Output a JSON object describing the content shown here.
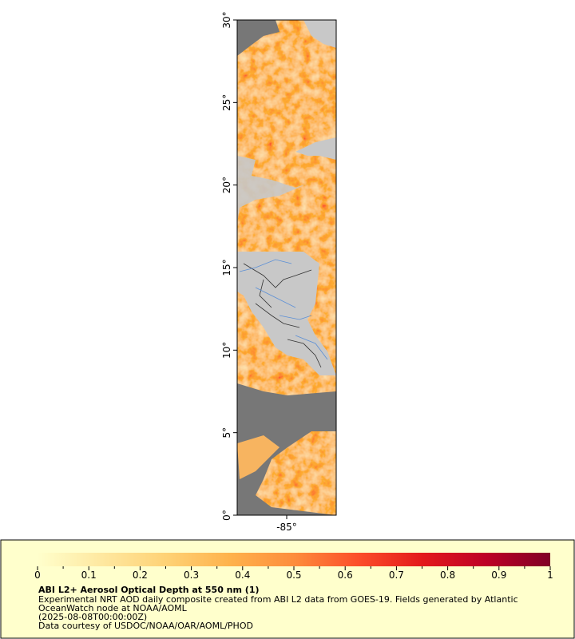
{
  "chart_data": {
    "type": "map",
    "xlim": [
      -88,
      -82
    ],
    "ylim": [
      0,
      30
    ],
    "xticks": [
      {
        "value": -85,
        "label": "-85°"
      }
    ],
    "yticks": [
      {
        "value": 0,
        "label": "0°"
      },
      {
        "value": 5,
        "label": "5°"
      },
      {
        "value": 10,
        "label": "10°"
      },
      {
        "value": 15,
        "label": "15°"
      },
      {
        "value": 20,
        "label": "20°"
      },
      {
        "value": 25,
        "label": "25°"
      },
      {
        "value": 30,
        "label": "30°"
      }
    ],
    "colorbar": {
      "lim": [
        0,
        1
      ],
      "ticks": [
        0,
        0.1,
        0.2,
        0.3,
        0.4,
        0.5,
        0.6,
        0.7,
        0.8,
        0.9,
        1
      ],
      "colors": [
        "#ffffcc",
        "#fee8a0",
        "#fed276",
        "#feb24c",
        "#fd8d3c",
        "#fc4e2a",
        "#e31a1c",
        "#bd0026",
        "#800026"
      ]
    },
    "legend": {
      "title": "ABI L2+ Aerosol Optical Depth at 550 nm (1)",
      "lines": [
        "Experimental NRT AOD daily composite created from ABI L2 data from GOES-19. Fields generated by Atlantic",
        "OceanWatch node at NOAA/AOML",
        "(2025-08-08T00:00:00Z)",
        "Data courtesy of USDOC/NOAA/OAR/AOML/PHOD"
      ]
    }
  }
}
